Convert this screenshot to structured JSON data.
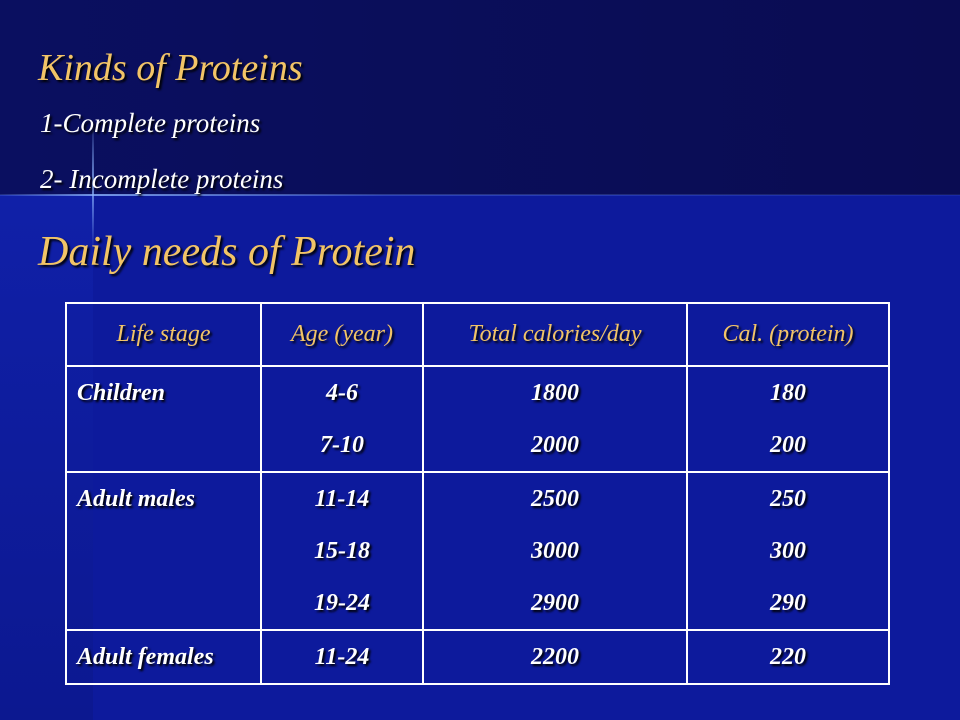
{
  "header": {
    "title": "Kinds of Proteins",
    "items": [
      "1-Complete proteins",
      "2- Incomplete proteins"
    ],
    "subtitle": "Daily needs of Protein"
  },
  "table": {
    "columns": [
      "Life stage",
      "Age (year)",
      "Total calories/day",
      "Cal. (protein)"
    ],
    "rows": [
      {
        "stage": "Children",
        "ages": [
          "4-6",
          "7-10"
        ],
        "calories": [
          1800,
          2000
        ],
        "protein": [
          180,
          200
        ]
      },
      {
        "stage": "Adult males",
        "ages": [
          "11-14",
          "15-18",
          "19-24"
        ],
        "calories": [
          2500,
          3000,
          2900
        ],
        "protein": [
          250,
          300,
          290
        ]
      },
      {
        "stage": "Adult females",
        "ages": [
          "11-24"
        ],
        "calories": [
          2200
        ],
        "protein": [
          220
        ]
      }
    ]
  }
}
